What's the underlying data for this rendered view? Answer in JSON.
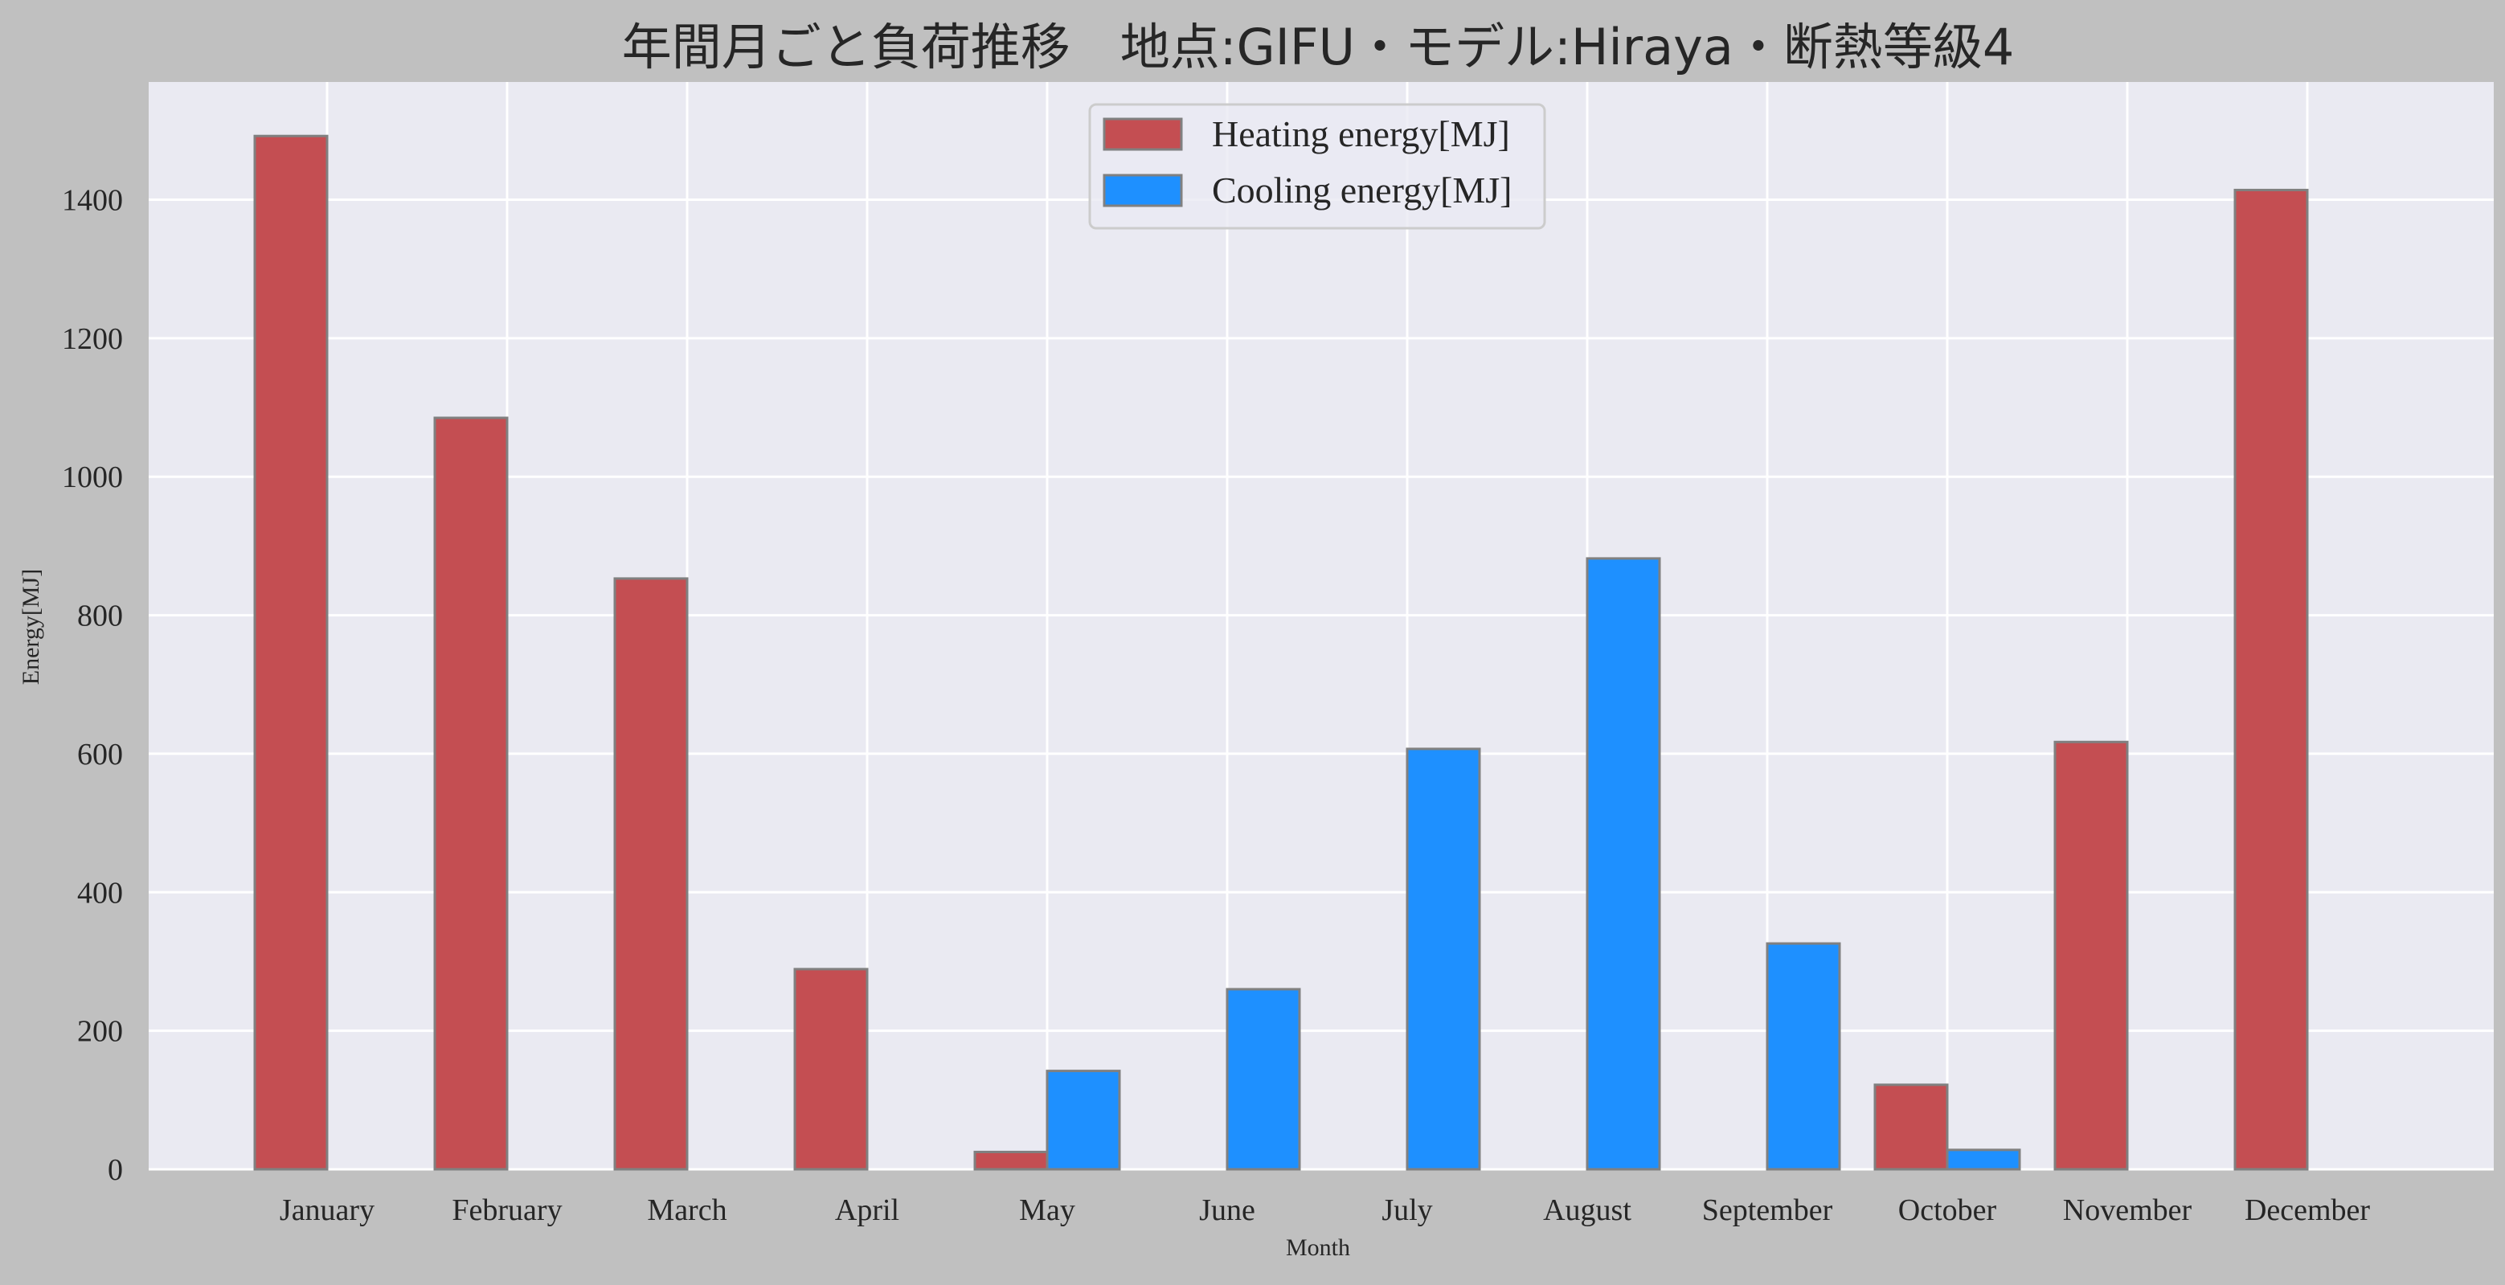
{
  "chart_data": {
    "type": "bar",
    "title": "年間月ごと負荷推移　地点:GIFU・モデル:Hiraya・断熱等級4",
    "xlabel": "Month",
    "ylabel": "Energy[MJ]",
    "categories": [
      "January",
      "February",
      "March",
      "April",
      "May",
      "June",
      "July",
      "August",
      "September",
      "October",
      "November",
      "December"
    ],
    "series": [
      {
        "name": "Heating energy[MJ]",
        "color": "#c44e52",
        "values": [
          1492,
          1085,
          853,
          289,
          25,
          0,
          0,
          0,
          0,
          122,
          617,
          1414
        ]
      },
      {
        "name": "Cooling energy[MJ]",
        "color": "#1e90ff",
        "values": [
          0,
          0,
          0,
          0,
          142,
          260,
          607,
          882,
          326,
          28,
          0,
          0
        ]
      }
    ],
    "ylim": [
      0,
      1570
    ],
    "yticks": [
      0,
      200,
      400,
      600,
      800,
      1000,
      1200,
      1400
    ],
    "grid": true,
    "legend_position": "top-center",
    "colors": {
      "figure_background": "#c0c0c0",
      "plot_background": "#eaeaf2",
      "grid": "#ffffff",
      "bar_edge": "#808080"
    }
  }
}
